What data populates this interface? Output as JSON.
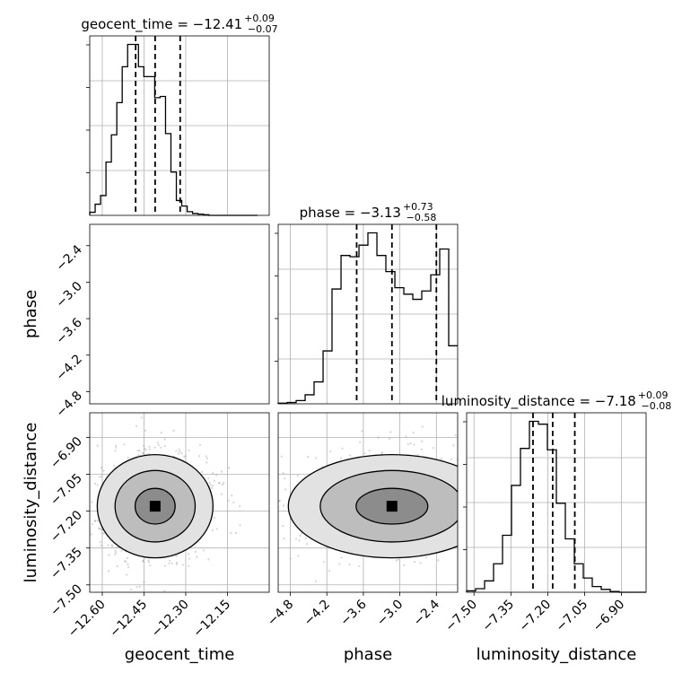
{
  "chart_data": {
    "type": "corner",
    "parameters": [
      "geocent_time",
      "phase",
      "luminosity_distance"
    ],
    "titles": {
      "geocent_time": {
        "prefix": "geocent_time = −12.41",
        "sup": "+0.09",
        "sub": "−0.07"
      },
      "phase": {
        "prefix": "phase = −3.13",
        "sup": "+0.73",
        "sub": "−0.58"
      },
      "luminosity_distance": {
        "prefix": "luminosity_distance = −7.18",
        "sup": "+0.09",
        "sub": "−0.08"
      }
    },
    "ranges": {
      "geocent_time": [
        -12.645,
        -12.0
      ],
      "phase": [
        -5.0,
        -2.05
      ],
      "luminosity_distance": [
        -7.53,
        -6.8
      ]
    },
    "ticks": {
      "geocent_time": {
        "values": [
          -12.6,
          -12.45,
          -12.3,
          -12.15
        ],
        "labels": [
          "−12.60",
          "−12.45",
          "−12.30",
          "−12.15"
        ]
      },
      "phase": {
        "values": [
          -4.8,
          -4.2,
          -3.6,
          -3.0,
          -2.4
        ],
        "labels": [
          "−4.8",
          "−4.2",
          "−3.6",
          "−3.0",
          "−2.4"
        ]
      },
      "luminosity_distance": {
        "values": [
          -7.5,
          -7.35,
          -7.2,
          -7.05,
          -6.9
        ],
        "labels": [
          "−7.50",
          "−7.35",
          "−7.20",
          "−7.05",
          "−6.90"
        ]
      }
    },
    "quantiles": {
      "geocent_time": [
        -12.48,
        -12.41,
        -12.32
      ],
      "phase": [
        -3.71,
        -3.13,
        -2.4
      ],
      "luminosity_distance": [
        -7.26,
        -7.18,
        -7.09
      ]
    },
    "histograms": {
      "geocent_time": {
        "bins": [
          -12.645,
          -12.6255,
          -12.6061,
          -12.5866,
          -12.5672,
          -12.5477,
          -12.5283,
          -12.5088,
          -12.4894,
          -12.4699,
          -12.4505,
          -12.431,
          -12.4115,
          -12.3921,
          -12.3726,
          -12.3532,
          -12.3337,
          -12.3143,
          -12.2948,
          -12.2754,
          -12.2559,
          -12.2365,
          -12.217,
          -12.1976,
          -12.1781,
          -12.1587,
          -12.1392,
          -12.1198,
          -12.1003,
          -12.0809,
          -12.0614,
          -12.042
        ],
        "counts": [
          5,
          18,
          32,
          86,
          130,
          182,
          240,
          276,
          276,
          240,
          224,
          224,
          190,
          192,
          132,
          70,
          24,
          15,
          6,
          3,
          2,
          1,
          0,
          0,
          0,
          0,
          0,
          0,
          0,
          0,
          0
        ]
      },
      "phase": {
        "bins": [
          -5.0,
          -4.852,
          -4.705,
          -4.557,
          -4.41,
          -4.262,
          -4.115,
          -3.967,
          -3.82,
          -3.672,
          -3.525,
          -3.377,
          -3.23,
          -3.082,
          -2.935,
          -2.787,
          -2.64,
          -2.492,
          -2.345,
          -2.197,
          -2.05
        ],
        "counts": [
          1,
          2,
          5,
          14,
          34,
          82,
          178,
          230,
          228,
          246,
          265,
          230,
          205,
          180,
          170,
          162,
          175,
          200,
          240,
          90
        ]
      },
      "luminosity_distance": {
        "bins": [
          -7.53,
          -7.4935,
          -7.457,
          -7.4205,
          -7.384,
          -7.3475,
          -7.311,
          -7.2745,
          -7.238,
          -7.2015,
          -7.165,
          -7.1285,
          -7.092,
          -7.0555,
          -7.019,
          -6.9825,
          -6.946,
          -6.9095,
          -6.873,
          -6.8365,
          -6.8
        ],
        "counts": [
          2,
          5,
          16,
          40,
          80,
          150,
          202,
          240,
          236,
          200,
          125,
          75,
          40,
          20,
          8,
          4,
          1,
          0,
          0,
          0
        ]
      }
    },
    "contour_levels": [
      "0.393",
      "0.865",
      "0.989"
    ],
    "xlabel_order": [
      "geocent_time",
      "phase",
      "luminosity_distance"
    ],
    "ylabel_order": [
      "phase",
      "luminosity_distance"
    ]
  }
}
